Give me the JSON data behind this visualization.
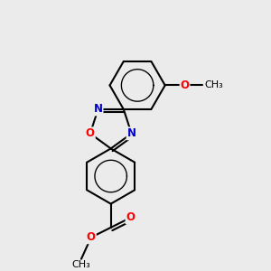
{
  "background_color": "#ebebeb",
  "bond_color": "#000000",
  "bond_width": 1.5,
  "atom_colors": {
    "O": "#ff0000",
    "N": "#0000cc",
    "C": "#000000"
  },
  "font_size": 8.5,
  "fig_size": [
    3.0,
    3.0
  ],
  "dpi": 100
}
